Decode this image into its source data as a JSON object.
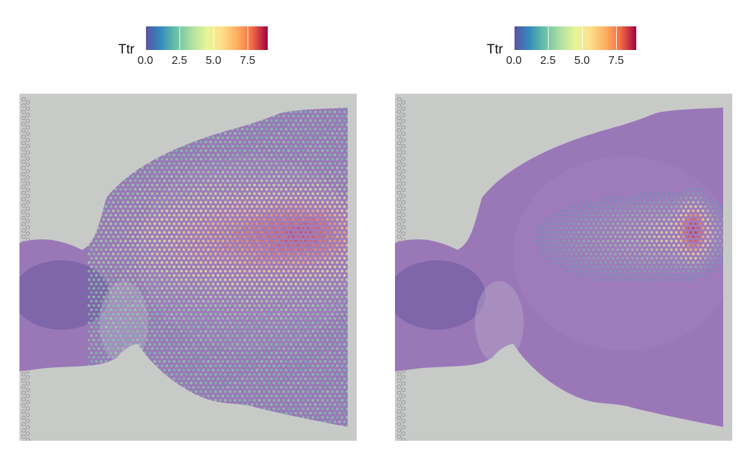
{
  "panels": [
    {
      "legend": {
        "title": "Ttr",
        "ticks": [
          "0.0",
          "2.5",
          "5.0",
          "7.5"
        ],
        "range": [
          0,
          9
        ]
      },
      "mode": "broad"
    },
    {
      "legend": {
        "title": "Ttr",
        "ticks": [
          "0.0",
          "2.5",
          "5.0",
          "7.5"
        ],
        "range": [
          0,
          9
        ]
      },
      "mode": "focal"
    }
  ],
  "colors": {
    "background": "#c8cac8",
    "tissue": "#9a78b8",
    "tissue_dark": "#6a58a0",
    "palette": [
      "#5E4FA2",
      "#3288BD",
      "#66C2A5",
      "#ABDDA4",
      "#E6F598",
      "#FEE08B",
      "#FDAE61",
      "#F46D43",
      "#D53E4F",
      "#9E0142"
    ]
  }
}
